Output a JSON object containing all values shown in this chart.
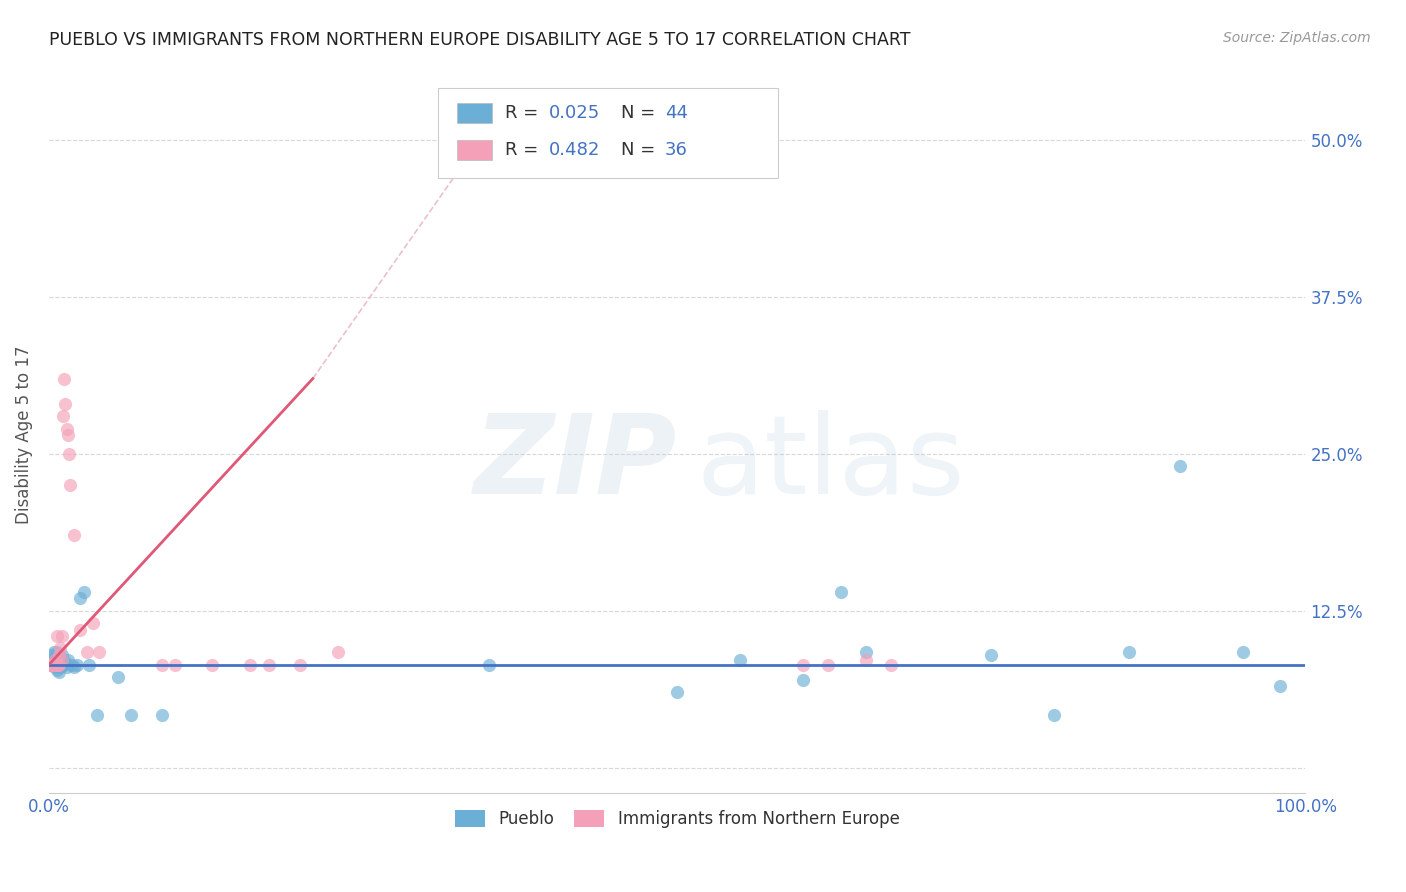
{
  "title": "PUEBLO VS IMMIGRANTS FROM NORTHERN EUROPE DISABILITY AGE 5 TO 17 CORRELATION CHART",
  "source": "Source: ZipAtlas.com",
  "ylabel": "Disability Age 5 to 17",
  "xlim": [
    0.0,
    1.0
  ],
  "ylim": [
    -0.02,
    0.55
  ],
  "yticks": [
    0.0,
    0.125,
    0.25,
    0.375,
    0.5
  ],
  "yticklabels_right": [
    "",
    "12.5%",
    "25.0%",
    "37.5%",
    "50.0%"
  ],
  "xticks": [
    0.0,
    0.25,
    0.5,
    0.75,
    1.0
  ],
  "xticklabels": [
    "0.0%",
    "",
    "",
    "",
    "100.0%"
  ],
  "pueblo_color": "#6baed6",
  "northern_europe_color": "#f4a0b8",
  "pueblo_line_color": "#4472c4",
  "northern_europe_line_color": "#e05878",
  "northern_europe_dashed_color": "#e8b0bc",
  "background_color": "#ffffff",
  "grid_color": "#d8d8d8",
  "title_color": "#222222",
  "axis_label_color": "#555555",
  "tick_label_color": "#4472c4",
  "pueblo_R": 0.025,
  "pueblo_N": 44,
  "northern_europe_R": 0.482,
  "northern_europe_N": 36,
  "pueblo_x": [
    0.001,
    0.002,
    0.003,
    0.004,
    0.004,
    0.005,
    0.005,
    0.006,
    0.006,
    0.007,
    0.007,
    0.008,
    0.008,
    0.009,
    0.009,
    0.01,
    0.01,
    0.011,
    0.012,
    0.013,
    0.014,
    0.015,
    0.018,
    0.02,
    0.022,
    0.025,
    0.028,
    0.032,
    0.038,
    0.055,
    0.065,
    0.09,
    0.35,
    0.5,
    0.55,
    0.6,
    0.63,
    0.65,
    0.75,
    0.8,
    0.86,
    0.9,
    0.95,
    0.98
  ],
  "pueblo_y": [
    0.082,
    0.09,
    0.085,
    0.092,
    0.086,
    0.088,
    0.08,
    0.092,
    0.078,
    0.09,
    0.085,
    0.082,
    0.076,
    0.08,
    0.088,
    0.082,
    0.09,
    0.085,
    0.082,
    0.084,
    0.08,
    0.086,
    0.082,
    0.08,
    0.082,
    0.135,
    0.14,
    0.082,
    0.042,
    0.072,
    0.042,
    0.042,
    0.082,
    0.06,
    0.086,
    0.07,
    0.14,
    0.092,
    0.09,
    0.042,
    0.092,
    0.24,
    0.092,
    0.065
  ],
  "northern_europe_x": [
    0.001,
    0.002,
    0.003,
    0.004,
    0.005,
    0.006,
    0.006,
    0.007,
    0.008,
    0.008,
    0.009,
    0.01,
    0.01,
    0.011,
    0.012,
    0.013,
    0.014,
    0.015,
    0.016,
    0.017,
    0.02,
    0.025,
    0.03,
    0.035,
    0.04,
    0.09,
    0.1,
    0.13,
    0.16,
    0.175,
    0.2,
    0.23,
    0.6,
    0.62,
    0.65,
    0.67
  ],
  "northern_europe_y": [
    0.082,
    0.082,
    0.082,
    0.082,
    0.086,
    0.082,
    0.105,
    0.082,
    0.082,
    0.09,
    0.095,
    0.086,
    0.105,
    0.28,
    0.31,
    0.29,
    0.27,
    0.265,
    0.25,
    0.225,
    0.185,
    0.11,
    0.092,
    0.115,
    0.092,
    0.082,
    0.082,
    0.082,
    0.082,
    0.082,
    0.082,
    0.092,
    0.082,
    0.082,
    0.086,
    0.082
  ],
  "pueblo_line_x": [
    0.0,
    1.0
  ],
  "pueblo_line_y": [
    0.082,
    0.082
  ],
  "ne_solid_line_x": [
    0.0,
    0.21
  ],
  "ne_solid_line_y": [
    0.082,
    0.31
  ],
  "ne_dashed_line_x": [
    0.21,
    0.35
  ],
  "ne_dashed_line_y": [
    0.31,
    0.51
  ]
}
